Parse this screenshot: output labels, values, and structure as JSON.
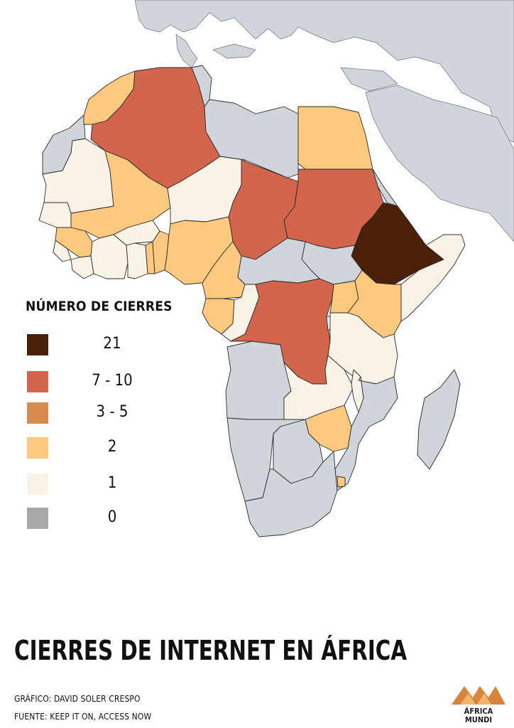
{
  "legend": {
    "title": "NÚMERO DE CIERRES",
    "items": [
      {
        "label": "21",
        "color": "#4a2108"
      },
      {
        "label": "7 - 10",
        "color": "#d4654d"
      },
      {
        "label": "3 - 5",
        "color": "#d78b4e"
      },
      {
        "label": "2",
        "color": "#fcc97e"
      },
      {
        "label": "1",
        "color": "#f8f3e6"
      },
      {
        "label": "0",
        "color": "#a8a8a8"
      }
    ]
  },
  "map": {
    "countries": {
      "ethiopia": 21,
      "algeria": "7 - 10",
      "chad": "7 - 10",
      "sudan": "7 - 10",
      "dr-congo": "7 - 10",
      "morocco": 2,
      "egypt": 2,
      "mali": 2,
      "nigeria": 2,
      "cameroon": 2,
      "gabon": 2,
      "kenya": 2,
      "zimbabwe": 2,
      "uganda": 2,
      "guinea": 2,
      "togo": 2,
      "benin": 2,
      "mauritania": 1,
      "niger": 1,
      "somalia": 1,
      "tanzania": 1,
      "zambia": 1,
      "malawi": 1,
      "congo": 1,
      "burkina-faso": 1,
      "senegal": 1,
      "ivory-coast": 1,
      "ghana": 1,
      "sierra-leone": 1,
      "liberia": 1,
      "burundi": 1,
      "libya": 0,
      "tunisia": 0,
      "western-sahara": 0,
      "car": 0,
      "south-sudan": 0,
      "angola": 0,
      "namibia": 0,
      "botswana": 0,
      "south-africa": 0,
      "mozambique": 0,
      "madagascar": 0,
      "eritrea": 0
    },
    "colors": {
      "land": "#cfd5db",
      "sea": "#ffffff",
      "border": "#2b2b2b"
    }
  },
  "title": "CIERRES DE INTERNET EN ÁFRICA",
  "credits": {
    "graphic": "GRÁFICO: DAVID SOLER CRESPO",
    "source": "FUENTE: KEEP IT ON, ACCESS NOW"
  },
  "logo": {
    "line1": "ÁFRICA",
    "line2": "MUNDI",
    "colors": [
      "#d9843c",
      "#f3b568"
    ]
  }
}
